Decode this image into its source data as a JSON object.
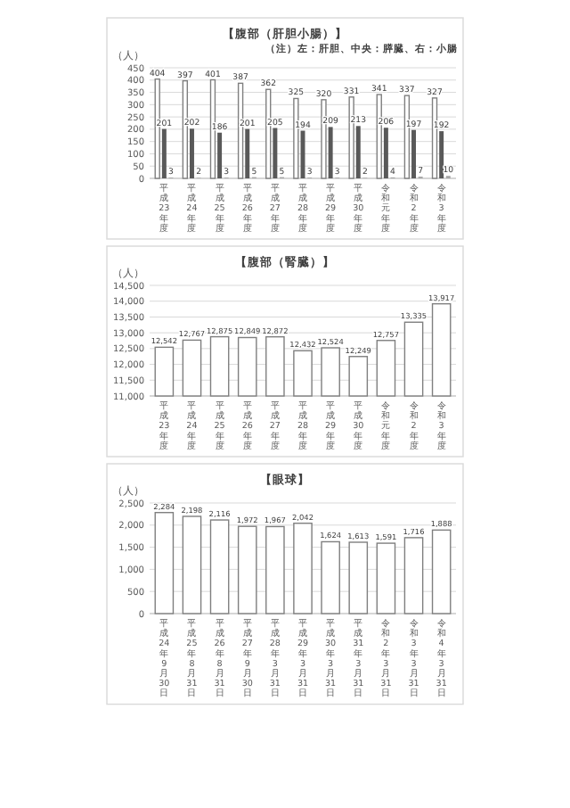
{
  "chart_data": [
    {
      "type": "bar",
      "title": "【腹部（肝胆小腸）】",
      "ylabel": "（人）",
      "annotations": [
        "（注）左：肝胆、中央：膵臓、右：小腸"
      ],
      "categories": [
        "平成23年度",
        "平成24年度",
        "平成25年度",
        "平成26年度",
        "平成27年度",
        "平成28年度",
        "平成29年度",
        "平成30年度",
        "令和元年度",
        "令和2年度",
        "令和3年度"
      ],
      "series": [
        {
          "color": "#ffffff",
          "values": [
            404,
            397,
            401,
            387,
            362,
            325,
            320,
            331,
            341,
            337,
            327
          ]
        },
        {
          "color": "#595959",
          "values": [
            201,
            202,
            186,
            201,
            205,
            194,
            209,
            213,
            206,
            197,
            192
          ]
        },
        {
          "color": "#a6a6a6",
          "values": [
            3,
            2,
            3,
            5,
            5,
            3,
            3,
            2,
            4,
            7,
            10
          ]
        }
      ],
      "ylim": [
        0,
        450
      ],
      "yticks": [
        0,
        50,
        100,
        150,
        200,
        250,
        300,
        350,
        400,
        450
      ],
      "grid": "y",
      "data_labels": true
    },
    {
      "type": "bar",
      "title": "【腹部（腎臓）】",
      "ylabel": "（人）",
      "categories": [
        "平成23年度",
        "平成24年度",
        "平成25年度",
        "平成26年度",
        "平成27年度",
        "平成28年度",
        "平成29年度",
        "平成30年度",
        "令和元年度",
        "令和2年度",
        "令和3年度"
      ],
      "values": [
        12542,
        12767,
        12875,
        12849,
        12872,
        12432,
        12524,
        12249,
        12757,
        13335,
        13917
      ],
      "color": "#ffffff",
      "value_labels": [
        "12,542",
        "12,767",
        "12,875",
        "12,849",
        "12,872",
        "12,432",
        "12,524",
        "12,249",
        "12,757",
        "13,335",
        "13,917"
      ],
      "ylim": [
        11000,
        14500
      ],
      "yticks": [
        {
          "value": 11000,
          "label": "11,000"
        },
        {
          "value": 11500,
          "label": "11,500"
        },
        {
          "value": 12000,
          "label": "12,000"
        },
        {
          "value": 12500,
          "label": "12,500"
        },
        {
          "value": 13000,
          "label": "13,000"
        },
        {
          "value": 13500,
          "label": "13,500"
        },
        {
          "value": 14000,
          "label": "14,000"
        },
        {
          "value": 14500,
          "label": "14,500"
        }
      ],
      "grid": "y"
    },
    {
      "type": "bar",
      "title": "【眼球】",
      "ylabel": "（人）",
      "categories": [
        "平成24年9月30日",
        "平成25年8月31日",
        "平成26年8月31日",
        "平成27年9月30日",
        "平成28年3月31日",
        "平成29年3月31日",
        "平成30年3月31日",
        "平成31年3月31日",
        "令和2年3月31日",
        "令和3年3月31日",
        "令和4年3月31日"
      ],
      "values": [
        2284,
        2198,
        2116,
        1972,
        1967,
        2042,
        1624,
        1613,
        1591,
        1716,
        1888
      ],
      "color": "#ffffff",
      "value_labels": [
        "2,284",
        "2,198",
        "2,116",
        "1,972",
        "1,967",
        "2,042",
        "1,624",
        "1,613",
        "1,591",
        "1,716",
        "1,888"
      ],
      "ylim": [
        0,
        2500
      ],
      "yticks": [
        0,
        {
          "value": 500,
          "label": "500"
        },
        {
          "value": 1000,
          "label": "1,000"
        },
        {
          "value": 1500,
          "label": "1,500"
        },
        {
          "value": 2000,
          "label": "2,000"
        },
        {
          "value": 2500,
          "label": "2,500"
        }
      ],
      "grid": "y"
    }
  ]
}
